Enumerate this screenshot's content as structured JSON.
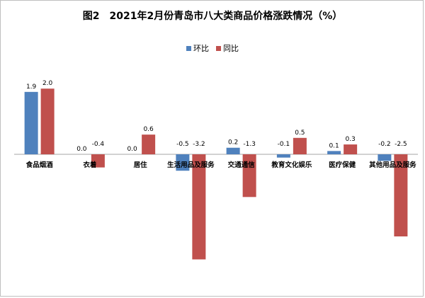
{
  "chart_data": {
    "type": "bar",
    "title": "图2　2021年2月份青岛市八大类商品价格涨跌情况（%）",
    "categories": [
      "食品烟酒",
      "衣着",
      "居住",
      "生活用品及服务",
      "交通通信",
      "教育文化娱乐",
      "医疗保健",
      "其他用品及服务"
    ],
    "series": [
      {
        "name": "环比",
        "color": "#4f81bd",
        "values": [
          1.9,
          0.0,
          0.0,
          -0.5,
          0.2,
          -0.1,
          0.1,
          -0.2
        ],
        "labels": [
          "1.9",
          "0.0",
          "0.0",
          "-0.5",
          "0.2",
          "-0.1",
          "0.1",
          "-0.2"
        ]
      },
      {
        "name": "同比",
        "color": "#c0504d",
        "values": [
          2.0,
          -0.4,
          0.6,
          -3.2,
          -1.3,
          0.5,
          0.3,
          -2.5
        ],
        "labels": [
          "2.0",
          "-0.4",
          "0.6",
          "-3.2",
          "-1.3",
          "0.5",
          "0.3",
          "-2.5"
        ]
      }
    ],
    "legend_position": "top-center",
    "grid": false
  }
}
